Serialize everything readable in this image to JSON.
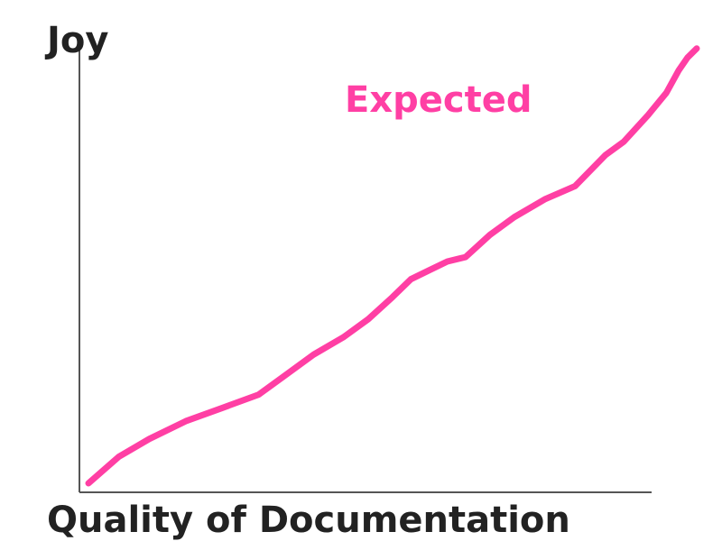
{
  "chart_data": {
    "type": "line",
    "xlabel": "Quality of Documentation",
    "ylabel": "Joy",
    "xlim": [
      0,
      100
    ],
    "ylim": [
      0,
      100
    ],
    "grid": false,
    "legend": "none",
    "series": [
      {
        "name": "Expected",
        "color": "#ff3fa4",
        "x": [
          0,
          5,
          10,
          16,
          22,
          28,
          32,
          37,
          42,
          46,
          50,
          53,
          56,
          59,
          62,
          66,
          70,
          75,
          80,
          85,
          88,
          92,
          95,
          97,
          98.5,
          100
        ],
        "y": [
          0,
          6,
          10,
          14,
          17,
          20,
          24,
          29,
          33,
          37,
          42,
          46,
          48,
          50,
          51,
          56,
          60,
          64,
          67,
          74,
          77,
          83,
          88,
          93,
          96,
          98
        ]
      }
    ]
  }
}
